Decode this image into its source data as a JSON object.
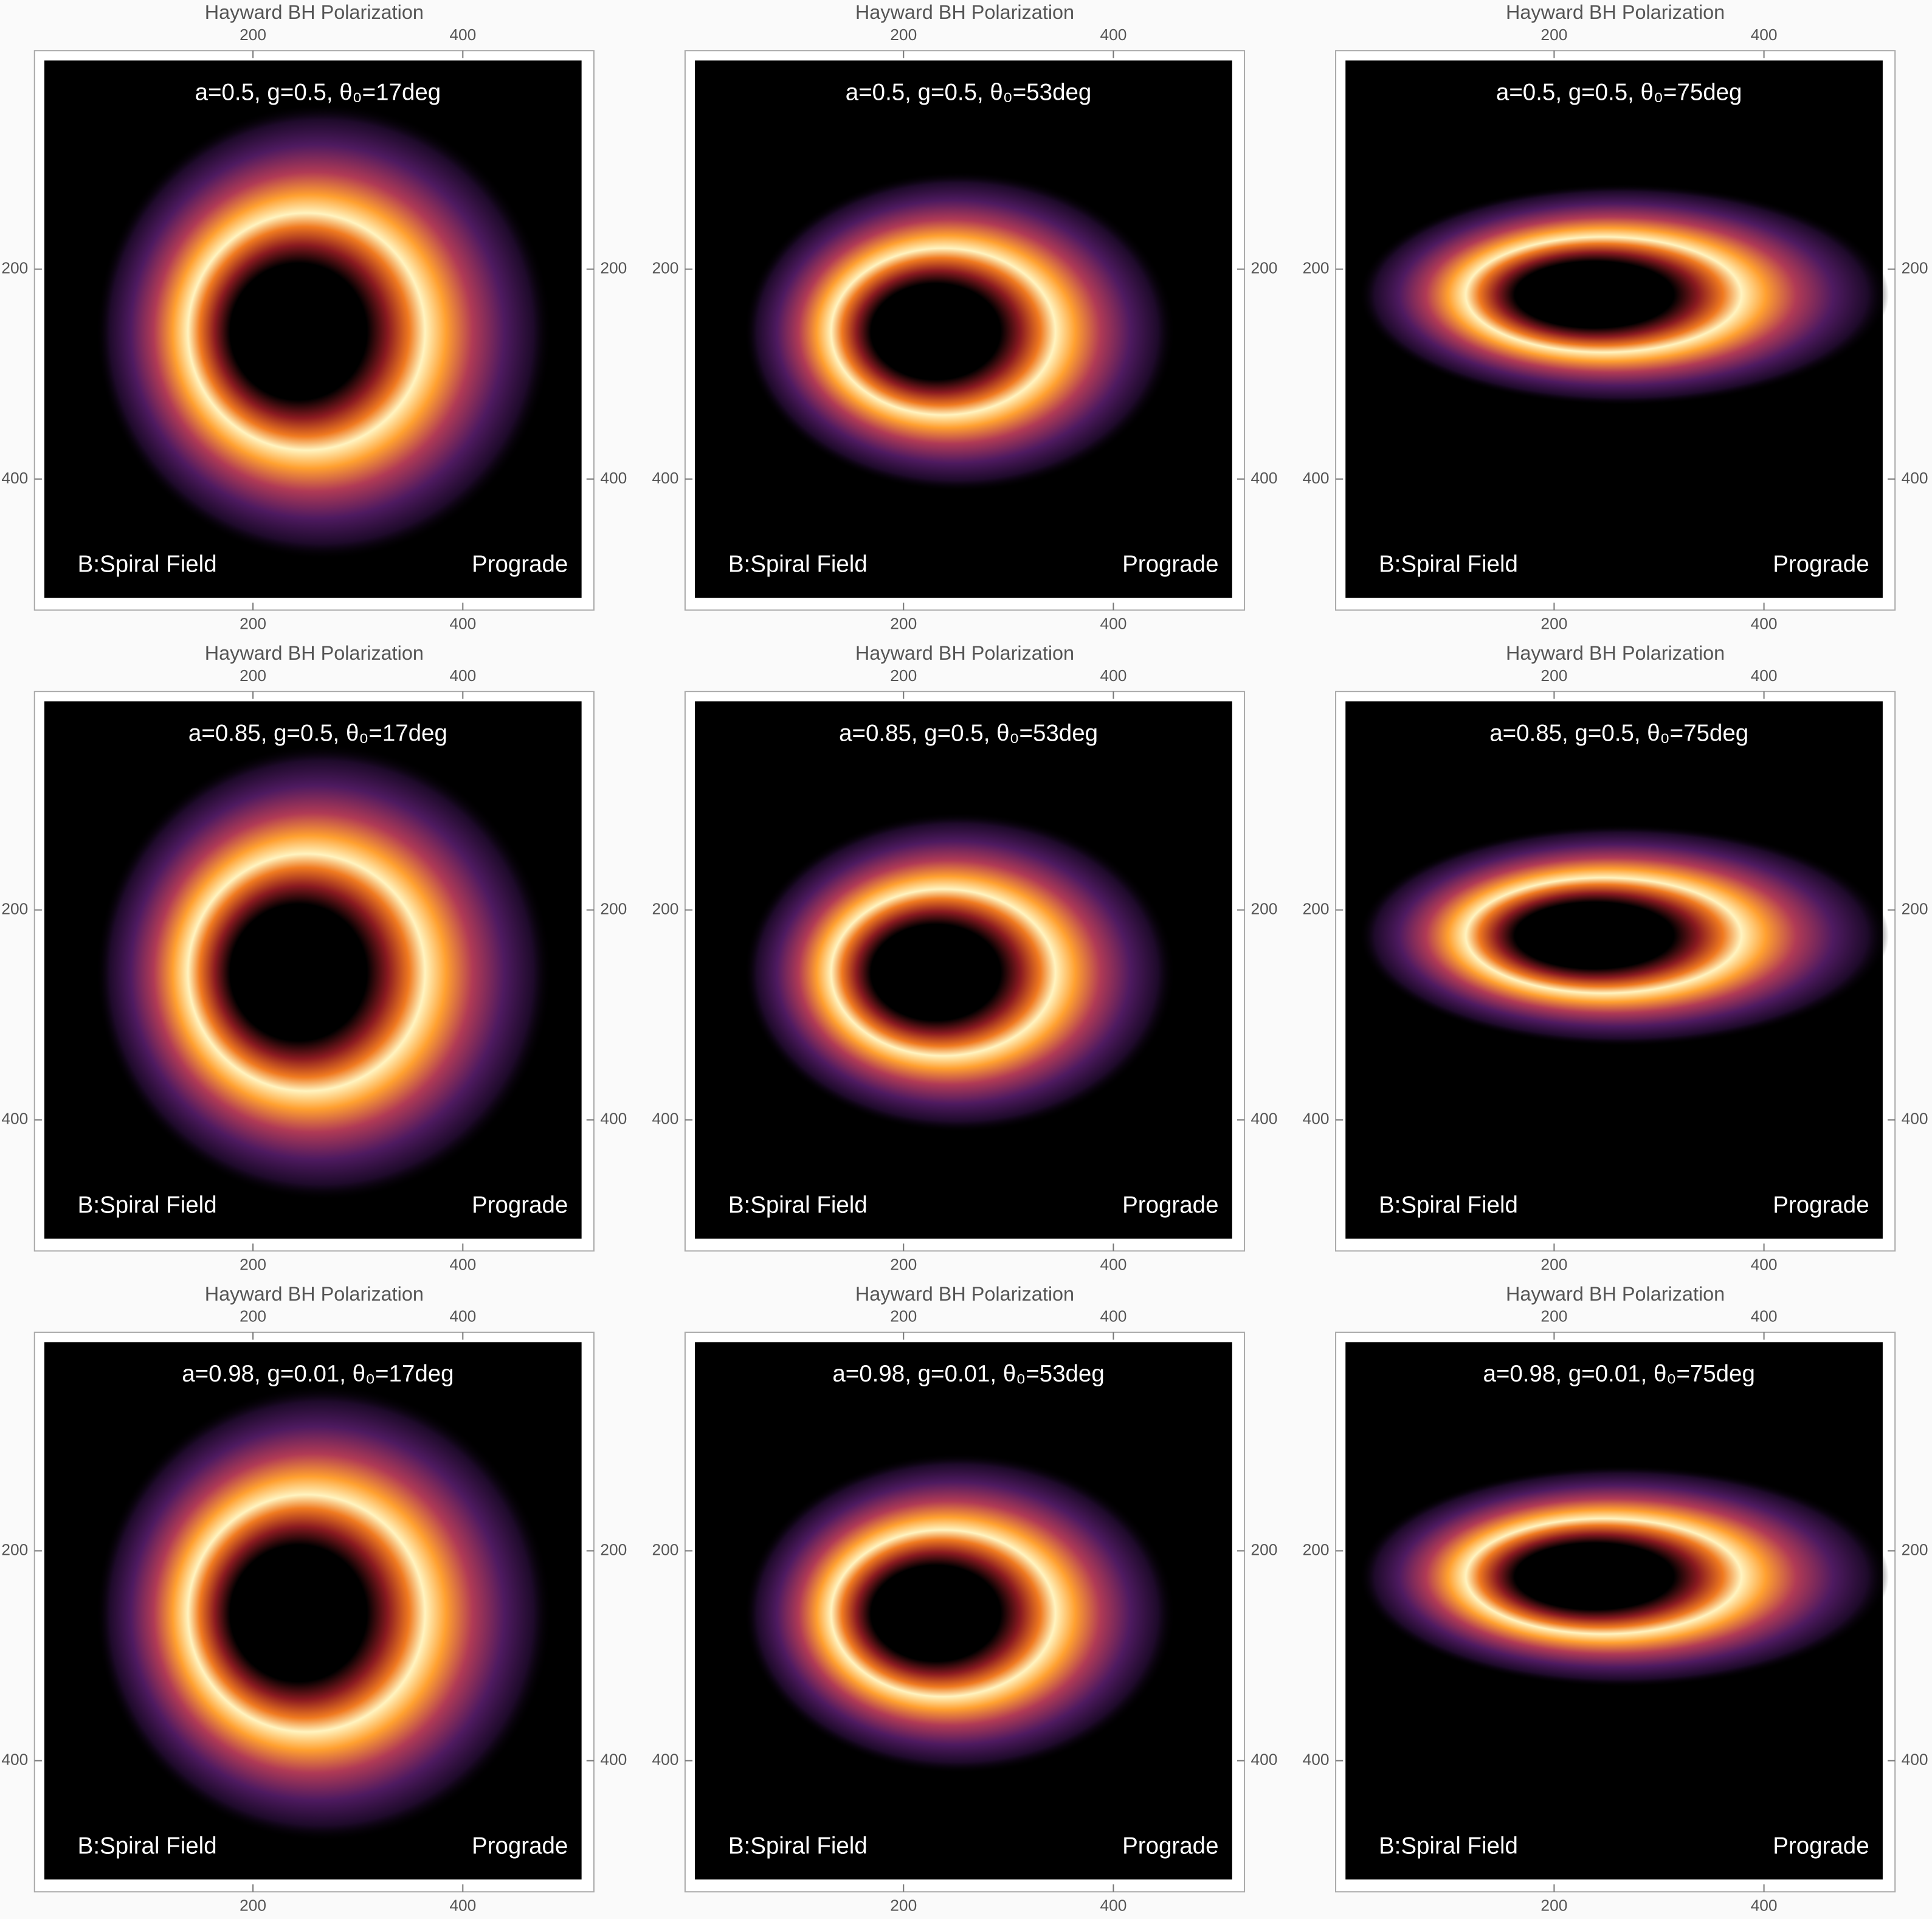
{
  "chart_data": [
    {
      "type": "image",
      "title": "Hayward BH Polarization",
      "subtitle": "a=0.5, g=0.5, θ₀=17deg",
      "annotations": [
        "B:Spiral Field",
        "Prograde"
      ],
      "xlim": [
        0,
        512
      ],
      "ylim": [
        0,
        512
      ],
      "xticks": [
        200,
        400
      ],
      "yticks": [
        200,
        400
      ]
    },
    {
      "type": "image",
      "title": "Hayward BH Polarization",
      "subtitle": "a=0.5, g=0.5, θ₀=53deg",
      "annotations": [
        "B:Spiral Field",
        "Prograde"
      ],
      "xlim": [
        0,
        512
      ],
      "ylim": [
        0,
        512
      ],
      "xticks": [
        200,
        400
      ],
      "yticks": [
        200,
        400
      ]
    },
    {
      "type": "image",
      "title": "Hayward BH Polarization",
      "subtitle": "a=0.5, g=0.5, θ₀=75deg",
      "annotations": [
        "B:Spiral Field",
        "Prograde"
      ],
      "xlim": [
        0,
        512
      ],
      "ylim": [
        0,
        512
      ],
      "xticks": [
        200,
        400
      ],
      "yticks": [
        200,
        400
      ]
    },
    {
      "type": "image",
      "title": "Hayward BH Polarization",
      "subtitle": "a=0.85, g=0.5, θ₀=17deg",
      "annotations": [
        "B:Spiral Field",
        "Prograde"
      ],
      "xlim": [
        0,
        512
      ],
      "ylim": [
        0,
        512
      ],
      "xticks": [
        200,
        400
      ],
      "yticks": [
        200,
        400
      ]
    },
    {
      "type": "image",
      "title": "Hayward BH Polarization",
      "subtitle": "a=0.85, g=0.5, θ₀=53deg",
      "annotations": [
        "B:Spiral Field",
        "Prograde"
      ],
      "xlim": [
        0,
        512
      ],
      "ylim": [
        0,
        512
      ],
      "xticks": [
        200,
        400
      ],
      "yticks": [
        200,
        400
      ]
    },
    {
      "type": "image",
      "title": "Hayward BH Polarization",
      "subtitle": "a=0.85, g=0.5, θ₀=75deg",
      "annotations": [
        "B:Spiral Field",
        "Prograde"
      ],
      "xlim": [
        0,
        512
      ],
      "ylim": [
        0,
        512
      ],
      "xticks": [
        200,
        400
      ],
      "yticks": [
        200,
        400
      ]
    },
    {
      "type": "image",
      "title": "Hayward BH Polarization",
      "subtitle": "a=0.98, g=0.01, θ₀=17deg",
      "annotations": [
        "B:Spiral Field",
        "Prograde"
      ],
      "xlim": [
        0,
        512
      ],
      "ylim": [
        0,
        512
      ],
      "xticks": [
        200,
        400
      ],
      "yticks": [
        200,
        400
      ]
    },
    {
      "type": "image",
      "title": "Hayward BH Polarization",
      "subtitle": "a=0.98, g=0.01, θ₀=53deg",
      "annotations": [
        "B:Spiral Field",
        "Prograde"
      ],
      "xlim": [
        0,
        512
      ],
      "ylim": [
        0,
        512
      ],
      "xticks": [
        200,
        400
      ],
      "yticks": [
        200,
        400
      ]
    },
    {
      "type": "image",
      "title": "Hayward BH Polarization",
      "subtitle": "a=0.98, g=0.01, θ₀=75deg",
      "annotations": [
        "B:Spiral Field",
        "Prograde"
      ],
      "xlim": [
        0,
        512
      ],
      "ylim": [
        0,
        512
      ],
      "xticks": [
        200,
        400
      ],
      "yticks": [
        200,
        400
      ]
    }
  ]
}
